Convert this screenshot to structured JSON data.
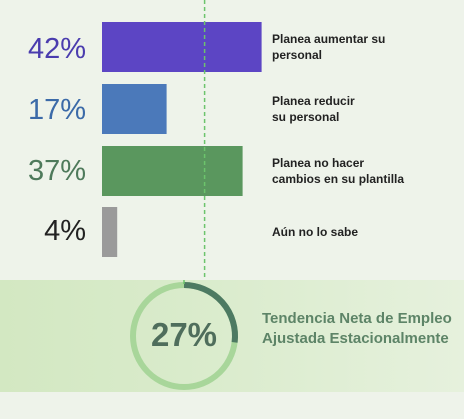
{
  "chart_data": {
    "type": "bar",
    "orientation": "horizontal",
    "xlim": [
      0,
      100
    ],
    "categories": [
      "Planea aumentar su\npersonal",
      "Planea reducir\nsu personal",
      "Planea no hacer\ncambios en su plantilla",
      "Aún no lo sabe"
    ],
    "values": [
      42,
      17,
      37,
      4
    ],
    "value_labels": [
      "42%",
      "17%",
      "37%",
      "4%"
    ],
    "colors": [
      "#5c45c4",
      "#4b79ba",
      "#5a975e",
      "#9a9a9a"
    ],
    "label_colors": [
      "#4a3cae",
      "#3b6aa8",
      "#4e7a5b",
      "#222222"
    ],
    "reference_line": {
      "value": 27,
      "style": "dashed",
      "color": "#6cc46c"
    }
  },
  "summary": {
    "value": 27,
    "value_label": "27%",
    "caption": "Tendencia Neta de Empleo Ajustada Estacionalmente",
    "ring_color": "#a8d69a",
    "arc_color": "#4d7a62"
  }
}
